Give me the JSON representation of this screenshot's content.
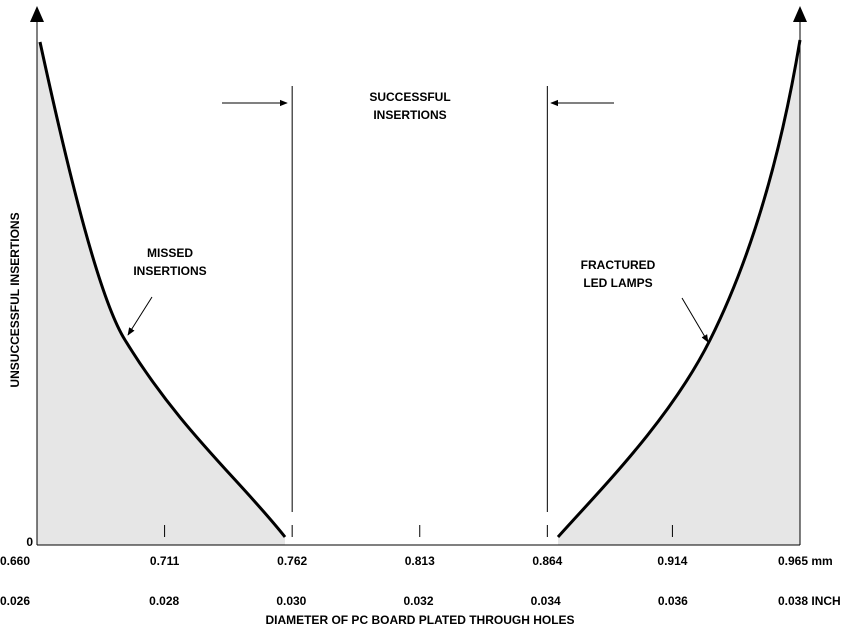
{
  "chart_data": {
    "type": "diagram",
    "ylabel": "UNSUCCESSFUL INSERTIONS",
    "xlabel": "DIAMETER OF PC BOARD PLATED THROUGH HOLES",
    "yticks": [
      0
    ],
    "xlim": [
      0.66,
      0.965
    ],
    "xticks": [
      {
        "value": 0.66,
        "label": "0.660"
      },
      0.711,
      {
        "value": 0.762,
        "label": "0.762"
      },
      0.813,
      {
        "value": 0.864,
        "label": "0.864"
      },
      0.914,
      {
        "value": 0.965,
        "label": "0.965 mm"
      }
    ],
    "x2lim": [
      0.026,
      0.038
    ],
    "x2ticks": [
      0.026,
      0.028,
      {
        "value": 0.03,
        "label": "0.030"
      },
      0.032,
      0.034,
      0.036,
      {
        "value": 0.038,
        "label": "0.038 INCH"
      }
    ],
    "annotations": {
      "successful": [
        "SUCCESSFUL",
        "INSERTIONS"
      ],
      "missed": [
        "MISSED",
        "INSERTIONS"
      ],
      "fractured": [
        "FRACTURED",
        "LED LAMPS"
      ]
    }
  }
}
